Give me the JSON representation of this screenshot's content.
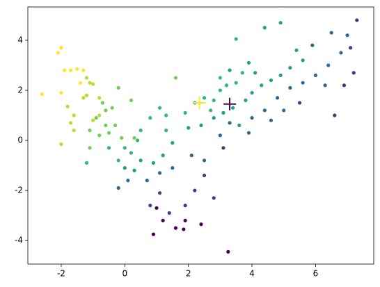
{
  "chart_data": {
    "type": "scatter",
    "xlim": [
      -3.05,
      7.83
    ],
    "ylim": [
      -4.94,
      5.33
    ],
    "xticks": [
      -2,
      0,
      2,
      4,
      6
    ],
    "yticks": [
      -4,
      -2,
      0,
      2,
      4
    ],
    "series": [
      {
        "color": "#fde725",
        "marker": "dot",
        "x": [
          -2.1,
          -2.0,
          -2.6,
          -1.9,
          -1.7,
          -1.5,
          -2.0,
          -1.3,
          -1.4
        ],
        "values": [
          3.5,
          3.7,
          1.85,
          2.8,
          2.8,
          2.85,
          1.9,
          2.8,
          2.3
        ]
      },
      {
        "color": "#b5de2b",
        "marker": "dot",
        "x": [
          -1.2,
          -1.1,
          -1.0,
          -1.8,
          -1.6,
          -1.7,
          -1.2,
          -1.3,
          -0.8,
          -2.0,
          -1.6,
          -0.8,
          -1.0
        ],
        "values": [
          2.5,
          2.3,
          2.25,
          1.35,
          1.0,
          0.7,
          1.8,
          1.7,
          1.7,
          -0.15,
          0.4,
          1.0,
          0.8
        ]
      },
      {
        "color": "#6ece58",
        "marker": "dot",
        "x": [
          -0.7,
          -0.6,
          -0.4,
          -0.9,
          -0.5,
          -1.1,
          -0.6,
          -0.2,
          -0.3,
          -0.8,
          -1.1,
          0.2,
          1.6,
          -0.1,
          0.3
        ],
        "values": [
          1.5,
          1.2,
          1.3,
          0.9,
          0.3,
          0.4,
          0.6,
          2.1,
          0.6,
          0.2,
          -0.3,
          1.6,
          2.5,
          0.1,
          0.1
        ]
      },
      {
        "color": "#35b779",
        "marker": "dot",
        "x": [
          -1.2,
          -0.5,
          -0.2,
          0.0,
          0.2,
          0.5,
          0.8,
          1.1,
          1.3,
          1.9,
          2.2,
          2.5,
          2.8,
          3.0,
          3.2,
          3.5,
          3.0,
          3.7,
          3.5,
          2.7,
          0.4,
          1.3
        ],
        "values": [
          -0.9,
          -0.3,
          -0.8,
          -0.3,
          -0.5,
          0.4,
          0.9,
          1.3,
          1.0,
          1.1,
          1.5,
          1.7,
          1.6,
          2.0,
          2.2,
          2.3,
          2.5,
          2.7,
          4.05,
          1.2,
          0.0,
          0.4
        ]
      },
      {
        "color": "#1f9e89",
        "marker": "dot",
        "x": [
          0.0,
          0.3,
          0.5,
          0.9,
          1.2,
          1.5,
          2.0,
          2.4,
          2.8,
          3.1,
          3.4,
          3.8,
          4.0,
          4.3,
          4.6,
          4.9,
          5.2,
          5.6,
          4.1,
          3.9,
          4.4,
          4.9,
          3.6,
          5.4,
          3.3
        ],
        "values": [
          -1.1,
          -1.2,
          -0.8,
          -0.9,
          -0.6,
          -0.1,
          0.5,
          0.6,
          0.9,
          1.1,
          1.3,
          1.6,
          1.9,
          2.2,
          2.4,
          2.6,
          2.9,
          3.2,
          2.7,
          3.1,
          4.5,
          4.7,
          0.6,
          3.6,
          2.8
        ]
      },
      {
        "color": "#31688e",
        "marker": "dot",
        "x": [
          -0.2,
          0.1,
          0.7,
          1.1,
          1.5,
          2.1,
          2.5,
          3.0,
          3.3,
          4.0,
          4.4,
          4.8,
          5.2,
          5.6,
          6.0,
          6.4,
          6.8,
          6.5,
          7.0,
          5.9,
          4.6,
          3.9,
          5.0,
          6.3
        ],
        "values": [
          -1.9,
          -1.6,
          -1.6,
          -1.3,
          -1.1,
          -0.6,
          -0.8,
          0.2,
          0.7,
          0.9,
          1.2,
          1.7,
          2.1,
          2.3,
          2.6,
          3.0,
          3.5,
          4.3,
          4.2,
          3.8,
          0.8,
          0.3,
          1.2,
          2.2
        ]
      },
      {
        "color": "#443983",
        "marker": "dot",
        "x": [
          0.8,
          1.1,
          1.4,
          1.9,
          2.2,
          2.5,
          2.8,
          6.6,
          5.5,
          6.9,
          7.2,
          7.3,
          7.1,
          3.1
        ],
        "values": [
          -2.6,
          -2.1,
          -2.9,
          -2.6,
          -2.0,
          -1.4,
          -2.3,
          1.0,
          1.5,
          2.2,
          2.7,
          4.8,
          3.7,
          -0.3
        ]
      },
      {
        "color": "#440154",
        "marker": "dot",
        "x": [
          0.9,
          1.2,
          1.6,
          1.9,
          2.4,
          1.85,
          3.25,
          1.0
        ],
        "values": [
          -3.75,
          -3.2,
          -3.5,
          -3.2,
          -3.35,
          -3.55,
          -4.45,
          -2.7
        ]
      },
      {
        "color": "#fde725",
        "marker": "plus",
        "x": [
          2.35
        ],
        "values": [
          1.5
        ]
      },
      {
        "color": "#440154",
        "marker": "plus",
        "x": [
          3.3
        ],
        "values": [
          1.45
        ]
      }
    ]
  }
}
